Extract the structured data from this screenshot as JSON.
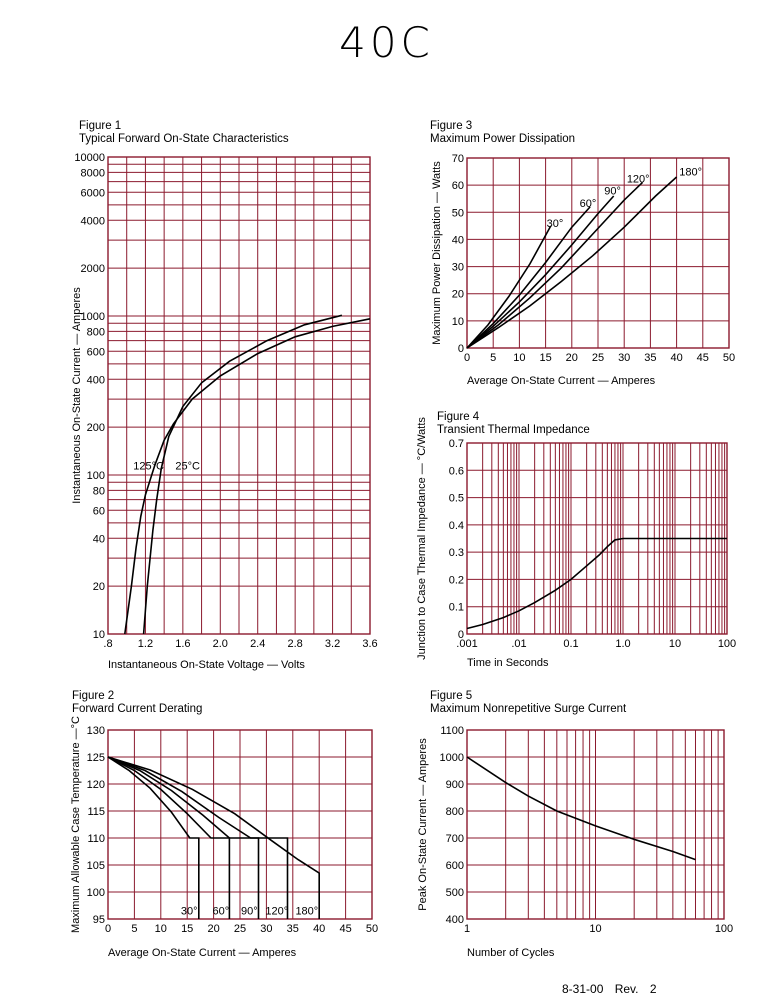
{
  "title": "40C",
  "footer": "8-31-00   Rev. 2",
  "colors": {
    "grid": "#8b1a2e",
    "curve": "#000000"
  },
  "chart_data": [
    {
      "id": "fig1",
      "figure": "Figure 1",
      "title": "Typical Forward On-State Characteristics",
      "type": "line",
      "xlabel": "Instantaneous On-State Voltage — Volts",
      "ylabel": "Instantaneous On-State Current — Amperes",
      "xlim": [
        0.8,
        3.6
      ],
      "ylim": [
        10,
        10000
      ],
      "yscale": "log",
      "grid": true,
      "xticks": [
        0.8,
        1.2,
        1.6,
        2.0,
        2.4,
        2.8,
        3.2,
        3.6
      ],
      "xtick_labels": [
        ".8",
        "1.2",
        "1.6",
        "2.0",
        "2.4",
        "2.8",
        "3.2",
        "3.6"
      ],
      "yticks": [
        10,
        20,
        40,
        60,
        80,
        100,
        200,
        400,
        600,
        800,
        1000,
        2000,
        4000,
        6000,
        8000,
        10000
      ],
      "ytick_labels": [
        "10",
        "20",
        "40",
        "60",
        "80",
        "100",
        "200",
        "400",
        "600",
        "800",
        "1000",
        "2000",
        "4000",
        "6000",
        "8000",
        "10000"
      ],
      "series": [
        {
          "name": "125°C",
          "label_at": [
            1.07,
            108
          ],
          "points": [
            [
              0.98,
              10
            ],
            [
              1.05,
              20
            ],
            [
              1.1,
              35
            ],
            [
              1.15,
              55
            ],
            [
              1.2,
              75
            ],
            [
              1.3,
              115
            ],
            [
              1.4,
              165
            ],
            [
              1.5,
              210
            ],
            [
              1.7,
              300
            ],
            [
              2.0,
              420
            ],
            [
              2.4,
              580
            ],
            [
              2.8,
              740
            ],
            [
              3.2,
              860
            ],
            [
              3.6,
              960
            ]
          ]
        },
        {
          "name": "25°C",
          "label_at": [
            1.52,
            108
          ],
          "points": [
            [
              1.18,
              10
            ],
            [
              1.22,
              20
            ],
            [
              1.25,
              30
            ],
            [
              1.28,
              45
            ],
            [
              1.32,
              70
            ],
            [
              1.37,
              110
            ],
            [
              1.45,
              175
            ],
            [
              1.6,
              270
            ],
            [
              1.8,
              380
            ],
            [
              2.1,
              520
            ],
            [
              2.5,
              700
            ],
            [
              2.9,
              880
            ],
            [
              3.3,
              1010
            ]
          ]
        }
      ]
    },
    {
      "id": "fig2",
      "figure": "Figure 2",
      "title": "Forward Current Derating",
      "type": "line",
      "xlabel": "Average On-State Current — Amperes",
      "ylabel": "Maximum Allowable Case Temperature —°C",
      "xlim": [
        0,
        50
      ],
      "ylim": [
        95,
        130
      ],
      "grid": true,
      "xticks": [
        0,
        5,
        10,
        15,
        20,
        25,
        30,
        35,
        40,
        45,
        50
      ],
      "xtick_labels": [
        "0",
        "5",
        "10",
        "15",
        "20",
        "25",
        "30",
        "35",
        "40",
        "45",
        "50"
      ],
      "yticks": [
        95,
        100,
        105,
        110,
        115,
        120,
        125,
        130
      ],
      "ytick_labels": [
        "95",
        "100",
        "105",
        "110",
        "115",
        "120",
        "125",
        "130"
      ],
      "series": [
        {
          "name": "30°",
          "label_at": [
            13.8,
            95.8
          ],
          "points": [
            [
              0,
              125
            ],
            [
              4,
              122.5
            ],
            [
              8,
              119.2
            ],
            [
              12,
              114.8
            ],
            [
              15.5,
              110
            ],
            [
              17.2,
              110
            ],
            [
              17.2,
              95
            ]
          ]
        },
        {
          "name": "60°",
          "label_at": [
            19.8,
            95.8
          ],
          "points": [
            [
              0,
              125
            ],
            [
              5,
              122.5
            ],
            [
              10,
              119
            ],
            [
              15,
              114.5
            ],
            [
              19.5,
              110
            ],
            [
              23,
              110
            ],
            [
              23,
              95
            ]
          ]
        },
        {
          "name": "90°",
          "label_at": [
            25.2,
            95.8
          ],
          "points": [
            [
              0,
              125
            ],
            [
              6,
              122.5
            ],
            [
              12,
              118.8
            ],
            [
              18,
              114.2
            ],
            [
              23,
              110
            ],
            [
              28.5,
              110
            ],
            [
              28.5,
              95
            ]
          ]
        },
        {
          "name": "120°",
          "label_at": [
            29.8,
            95.8
          ],
          "points": [
            [
              0,
              125
            ],
            [
              7,
              122.5
            ],
            [
              14,
              118.6
            ],
            [
              21,
              113.8
            ],
            [
              27,
              110
            ],
            [
              34,
              110
            ],
            [
              34,
              95
            ]
          ]
        },
        {
          "name": "180°",
          "label_at": [
            35.5,
            95.8
          ],
          "points": [
            [
              0,
              125
            ],
            [
              8,
              122.6
            ],
            [
              16,
              119
            ],
            [
              24,
              114.5
            ],
            [
              31,
              109.5
            ],
            [
              36,
              106
            ],
            [
              40,
              103.5
            ],
            [
              40,
              95
            ]
          ]
        }
      ]
    },
    {
      "id": "fig3",
      "figure": "Figure 3",
      "title": "Maximum Power Dissipation",
      "type": "line",
      "xlabel": "Average On-State Current — Amperes",
      "ylabel": "Maximum Power Dissipation — Watts",
      "xlim": [
        0,
        50
      ],
      "ylim": [
        0,
        70
      ],
      "grid": true,
      "xticks": [
        0,
        5,
        10,
        15,
        20,
        25,
        30,
        35,
        40,
        45,
        50
      ],
      "xtick_labels": [
        "0",
        "5",
        "10",
        "15",
        "20",
        "25",
        "30",
        "35",
        "40",
        "45",
        "50"
      ],
      "yticks": [
        0,
        10,
        20,
        30,
        40,
        50,
        60,
        70
      ],
      "ytick_labels": [
        "0",
        "10",
        "20",
        "30",
        "40",
        "50",
        "60",
        "70"
      ],
      "series": [
        {
          "name": "30°",
          "label_at": [
            15.2,
            44.5
          ],
          "points": [
            [
              0,
              0
            ],
            [
              4,
              8.5
            ],
            [
              8,
              19
            ],
            [
              12,
              31
            ],
            [
              16,
              45
            ]
          ]
        },
        {
          "name": "60°",
          "label_at": [
            21.5,
            52
          ],
          "points": [
            [
              0,
              0
            ],
            [
              5,
              9
            ],
            [
              10,
              19.5
            ],
            [
              15,
              31.5
            ],
            [
              20,
              44.5
            ],
            [
              23.5,
              52
            ]
          ]
        },
        {
          "name": "90°",
          "label_at": [
            26.2,
            56.5
          ],
          "points": [
            [
              0,
              0
            ],
            [
              5,
              8
            ],
            [
              10,
              17
            ],
            [
              15,
              27
            ],
            [
              20,
              38
            ],
            [
              25,
              49.5
            ],
            [
              28,
              56
            ]
          ]
        },
        {
          "name": "120°",
          "label_at": [
            30.5,
            61
          ],
          "points": [
            [
              0,
              0
            ],
            [
              6,
              8.5
            ],
            [
              12,
              18.5
            ],
            [
              18,
              29.5
            ],
            [
              24,
              42
            ],
            [
              30,
              54.5
            ],
            [
              33.5,
              61
            ]
          ]
        },
        {
          "name": "180°",
          "label_at": [
            40.5,
            63.5
          ],
          "points": [
            [
              0,
              0
            ],
            [
              6,
              7.5
            ],
            [
              12,
              15.5
            ],
            [
              18,
              24.5
            ],
            [
              24,
              34
            ],
            [
              30,
              44.5
            ],
            [
              36,
              56
            ],
            [
              40,
              63
            ]
          ]
        }
      ]
    },
    {
      "id": "fig4",
      "figure": "Figure 4",
      "title": "Transient Thermal Impedance",
      "type": "line",
      "xlabel": "Time in Seconds",
      "ylabel": "Junction to Case Thermal Impedance — °C/Watts",
      "xlim": [
        0.001,
        100
      ],
      "ylim": [
        0,
        0.7
      ],
      "xscale": "log",
      "grid": true,
      "xticks": [
        0.001,
        0.01,
        0.1,
        1,
        10,
        100
      ],
      "xtick_labels": [
        ".001",
        ".01",
        "0.1",
        "1.0",
        "10",
        "100"
      ],
      "yticks": [
        0,
        0.1,
        0.2,
        0.3,
        0.4,
        0.5,
        0.6,
        0.7
      ],
      "ytick_labels": [
        "0",
        "0.1",
        "0.2",
        "0.3",
        "0.4",
        "0.5",
        "0.6",
        "0.7"
      ],
      "series": [
        {
          "name": "",
          "points": [
            [
              0.001,
              0.02
            ],
            [
              0.002,
              0.035
            ],
            [
              0.005,
              0.06
            ],
            [
              0.01,
              0.085
            ],
            [
              0.02,
              0.115
            ],
            [
              0.05,
              0.16
            ],
            [
              0.1,
              0.2
            ],
            [
              0.2,
              0.25
            ],
            [
              0.35,
              0.29
            ],
            [
              0.5,
              0.32
            ],
            [
              0.7,
              0.345
            ],
            [
              1,
              0.35
            ],
            [
              10,
              0.35
            ],
            [
              100,
              0.35
            ]
          ]
        }
      ]
    },
    {
      "id": "fig5",
      "figure": "Figure 5",
      "title": "Maximum Nonrepetitive Surge Current",
      "type": "line",
      "xlabel": "Number of Cycles",
      "ylabel": "Peak On-State Current — Amperes",
      "xlim": [
        1,
        100
      ],
      "ylim": [
        400,
        1100
      ],
      "xscale": "log",
      "grid": true,
      "xticks": [
        1,
        10,
        100
      ],
      "xtick_labels": [
        "1",
        "10",
        "100"
      ],
      "yticks": [
        400,
        500,
        600,
        700,
        800,
        900,
        1000,
        1100
      ],
      "ytick_labels": [
        "400",
        "500",
        "600",
        "700",
        "800",
        "900",
        "1000",
        "1100"
      ],
      "series": [
        {
          "name": "",
          "points": [
            [
              1,
              1000
            ],
            [
              2,
              905
            ],
            [
              3,
              855
            ],
            [
              5,
              800
            ],
            [
              10,
              745
            ],
            [
              20,
              695
            ],
            [
              40,
              650
            ],
            [
              60,
              620
            ]
          ]
        }
      ]
    }
  ]
}
